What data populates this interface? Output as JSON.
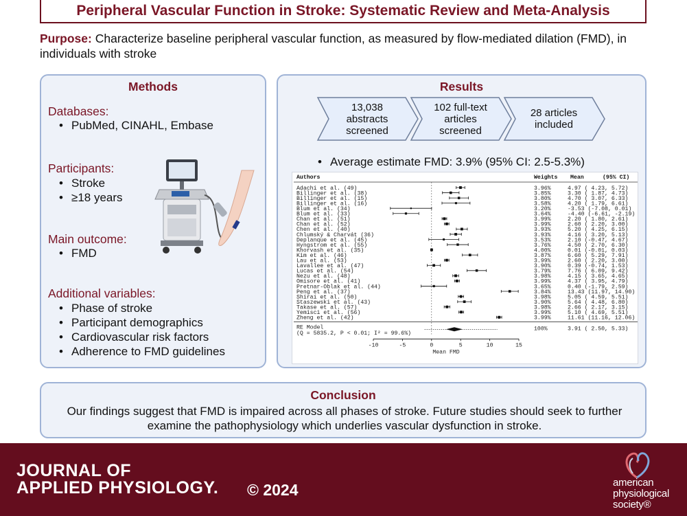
{
  "title": "Peripheral Vascular Function in Stroke: Systematic Review and Meta-Analysis",
  "purpose": {
    "label": "Purpose:",
    "text": "Characterize baseline peripheral vascular function, as measured by flow-mediated dilation (FMD), in individuals with stroke"
  },
  "methods": {
    "title": "Methods",
    "sections": [
      {
        "heading": "Databases:",
        "items": [
          "PubMed, CINAHL, Embase"
        ]
      },
      {
        "heading": "Participants:",
        "items": [
          "Stroke",
          "≥18 years"
        ]
      },
      {
        "heading": "Main outcome:",
        "items": [
          "FMD"
        ]
      },
      {
        "heading": "Additional variables:",
        "items": [
          "Phase of stroke",
          "Participant demographics",
          "Cardiovascular risk factors",
          "Adherence to FMD guidelines"
        ]
      }
    ]
  },
  "results": {
    "title": "Results",
    "flow": [
      [
        "13,038",
        "abstracts",
        "screened"
      ],
      [
        "102 full-text",
        "articles",
        "screened"
      ],
      [
        "28 articles",
        "included"
      ]
    ],
    "estimate": "Average estimate FMD: 3.9% (95% CI: 2.5-5.3%)"
  },
  "chart_data": {
    "type": "forest",
    "headers": {
      "authors": "Authors",
      "weights": "Weights",
      "mean": "Mean",
      "ci": "(95% CI)"
    },
    "xlabel": "Mean FMD",
    "xlim": [
      -10,
      15
    ],
    "ticks": [
      -10,
      -5,
      0,
      5,
      10,
      15
    ],
    "studies": [
      {
        "name": "Adachi et al. (49)",
        "weight": "3.96%",
        "mean": 4.97,
        "lo": 4.23,
        "hi": 5.72,
        "label": " 4.97 ( 4.23,  5.72)"
      },
      {
        "name": "Billinger et al. (38)",
        "weight": "3.85%",
        "mean": 3.3,
        "lo": 1.87,
        "hi": 4.73,
        "label": " 3.30 ( 1.87,  4.73)"
      },
      {
        "name": "Billinger et al. (15)",
        "weight": "3.80%",
        "mean": 4.7,
        "lo": 3.07,
        "hi": 6.33,
        "label": " 4.70 ( 3.07,  6.33)"
      },
      {
        "name": "Billinger et al. (16)",
        "weight": "3.58%",
        "mean": 4.2,
        "lo": 1.79,
        "hi": 6.61,
        "label": " 4.20 ( 1.79,  6.61)"
      },
      {
        "name": "Blum et al. (34)",
        "weight": "3.20%",
        "mean": -3.53,
        "lo": -7.08,
        "hi": 0.01,
        "label": "-3.53 (-7.08,  0.01)"
      },
      {
        "name": "Blum et al. (33)",
        "weight": "3.64%",
        "mean": -4.4,
        "lo": -6.61,
        "hi": -2.19,
        "label": "-4.40 (-6.61, -2.19)"
      },
      {
        "name": "Chan et al. (51)",
        "weight": "3.99%",
        "mean": 2.2,
        "lo": 1.8,
        "hi": 2.61,
        "label": " 2.20 ( 1.80,  2.61)"
      },
      {
        "name": "Chan et al. (52)",
        "weight": "3.99%",
        "mean": 2.6,
        "lo": 2.2,
        "hi": 3.0,
        "label": " 2.60 ( 2.20,  3.00)"
      },
      {
        "name": "Chen et al. (40)",
        "weight": "3.93%",
        "mean": 5.2,
        "lo": 4.25,
        "hi": 6.15,
        "label": " 5.20 ( 4.25,  6.15)"
      },
      {
        "name": "Chlumský & Charvát (36)",
        "weight": "3.93%",
        "mean": 4.16,
        "lo": 3.2,
        "hi": 5.13,
        "label": " 4.16 ( 3.20,  5.13)"
      },
      {
        "name": "Deplanque et al. (45)",
        "weight": "3.53%",
        "mean": 2.1,
        "lo": -0.47,
        "hi": 4.67,
        "label": " 2.10 (-0.47,  4.67)"
      },
      {
        "name": "Hyngstrom et al. (55)",
        "weight": "3.76%",
        "mean": 4.5,
        "lo": 2.7,
        "hi": 6.3,
        "label": " 4.50 ( 2.70,  6.30)"
      },
      {
        "name": "Khorvash et al. (35)",
        "weight": "4.00%",
        "mean": 0.01,
        "lo": -0.01,
        "hi": 0.03,
        "label": " 0.01 (-0.01,  0.03)"
      },
      {
        "name": "Kim et al. (46)",
        "weight": "3.87%",
        "mean": 6.6,
        "lo": 5.29,
        "hi": 7.91,
        "label": " 6.60 ( 5.29,  7.91)"
      },
      {
        "name": "Lau et al. (53)",
        "weight": "3.99%",
        "mean": 2.6,
        "lo": 2.2,
        "hi": 3.0,
        "label": " 2.60 ( 2.20,  3.00)"
      },
      {
        "name": "Lavallee et al. (47)",
        "weight": "3.90%",
        "mean": 0.39,
        "lo": -0.74,
        "hi": 1.53,
        "label": " 0.39 (-0.74,  1.53)"
      },
      {
        "name": "Lucas et al. (54)",
        "weight": "3.79%",
        "mean": 7.76,
        "lo": 6.09,
        "hi": 9.42,
        "label": " 7.76 ( 6.09,  9.42)"
      },
      {
        "name": "Nezu et al. (48)",
        "weight": "3.98%",
        "mean": 4.15,
        "lo": 3.65,
        "hi": 4.65,
        "label": " 4.15 ( 3.65,  4.65)"
      },
      {
        "name": "Omisore et al. (41)",
        "weight": "3.99%",
        "mean": 4.37,
        "lo": 3.95,
        "hi": 4.79,
        "label": " 4.37 ( 3.95,  4.79)"
      },
      {
        "name": "Pretnar-Oblak et al. (44)",
        "weight": "3.65%",
        "mean": 0.4,
        "lo": -1.79,
        "hi": 2.59,
        "label": " 0.40 (-1.79,  2.59)"
      },
      {
        "name": "Peng et al. (37)",
        "weight": "3.84%",
        "mean": 13.43,
        "lo": 11.97,
        "hi": 14.9,
        "label": "13.43 (11.97, 14.90)"
      },
      {
        "name": "Shirai et al. (50)",
        "weight": "3.98%",
        "mean": 5.05,
        "lo": 4.59,
        "hi": 5.51,
        "label": " 5.05 ( 4.59,  5.51)"
      },
      {
        "name": "Staszewski et al. (43)",
        "weight": "3.90%",
        "mean": 5.64,
        "lo": 4.48,
        "hi": 6.8,
        "label": " 5.64 ( 4.48,  6.80)"
      },
      {
        "name": "Takase et al. (57)",
        "weight": "3.98%",
        "mean": 2.66,
        "lo": 2.17,
        "hi": 3.15,
        "label": " 2.66 ( 2.17,  3.15)"
      },
      {
        "name": "Yemisci et al. (56)",
        "weight": "3.99%",
        "mean": 5.1,
        "lo": 4.69,
        "hi": 5.51,
        "label": " 5.10 ( 4.69,  5.51)"
      },
      {
        "name": "Zheng et al. (42)",
        "weight": "3.99%",
        "mean": 11.61,
        "lo": 11.16,
        "hi": 12.06,
        "label": "11.61 (11.16, 12.06)"
      }
    ],
    "model": {
      "name": "RE Model",
      "stats": "(Q = 5835.2, P < 0.01; I² = 99.6%)",
      "weight": "100%",
      "mean": 3.91,
      "lo": 2.5,
      "hi": 5.33,
      "pi_lo": -1.2,
      "pi_hi": 11.3,
      "label": " 3.91 ( 2.50,  5.33)"
    }
  },
  "conclusion": {
    "title": "Conclusion",
    "text": "Our findings suggest that FMD is impaired across all phases of stroke. Future studies should seek to further examine the pathophysiology which underlies vascular dysfunction in stroke."
  },
  "footer": {
    "journal_line1": "JOURNAL OF",
    "journal_line2": "APPLIED PHYSIOLOGY.",
    "copyright": "© 2024",
    "society": [
      "american",
      "physiological",
      "society®"
    ]
  },
  "colors": {
    "accent": "#7a1626",
    "footer": "#640d1e",
    "panel_bg": "#eef2f9",
    "panel_border": "#9fb3d6",
    "arrow_fill": "#e6eefb"
  }
}
